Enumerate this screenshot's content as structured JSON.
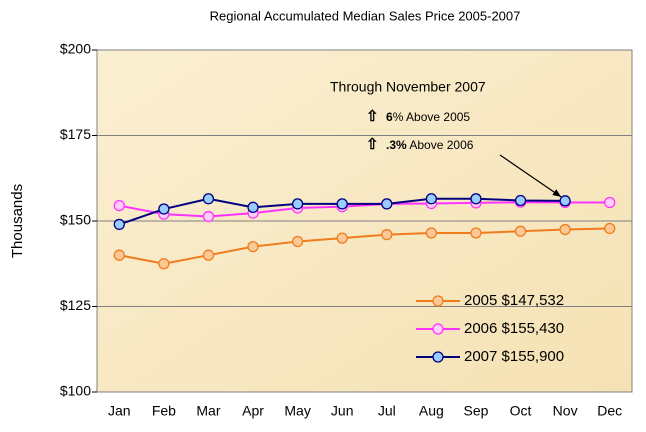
{
  "chart_data": {
    "type": "line",
    "title": "Regional Accumulated Median Sales Price 2005-2007",
    "y_label": "Thousands",
    "categories": [
      "Jan",
      "Feb",
      "Mar",
      "Apr",
      "May",
      "Jun",
      "Jul",
      "Aug",
      "Sep",
      "Oct",
      "Nov",
      "Dec"
    ],
    "series": [
      {
        "name": "2005 $147,532",
        "color": "#f07c1e",
        "marker_fill": "#fbc896",
        "values": [
          140,
          137.5,
          140,
          142.5,
          144,
          145,
          146,
          146.5,
          146.5,
          147,
          147.5,
          147.8
        ]
      },
      {
        "name": "2006 $155,430",
        "color": "#ff33ff",
        "marker_fill": "#ffd0ff",
        "values": [
          154.5,
          152,
          151.3,
          152.3,
          153.8,
          154.2,
          155,
          155.1,
          155.3,
          155.5,
          155.4,
          155.4
        ]
      },
      {
        "name": "2007 $155,900",
        "color": "#000080",
        "marker_fill": "#99ccff",
        "values": [
          149,
          153.5,
          156.5,
          154,
          155,
          155,
          155,
          156.5,
          156.5,
          156,
          155.9,
          null
        ]
      }
    ],
    "ylim": [
      100,
      200
    ],
    "yticks": [
      {
        "value": 100,
        "label": "$100"
      },
      {
        "value": 125,
        "label": "$125"
      },
      {
        "value": 150,
        "label": "$150"
      },
      {
        "value": 175,
        "label": "$175"
      },
      {
        "value": 200,
        "label": "$200"
      }
    ],
    "grid": true,
    "legend": "lower right",
    "annotation_title": "Through November  2007",
    "annotations": [
      {
        "bold": "6",
        "text": "% Above 2005"
      },
      {
        "bold": ".3%",
        "text": " Above 2006"
      }
    ]
  }
}
